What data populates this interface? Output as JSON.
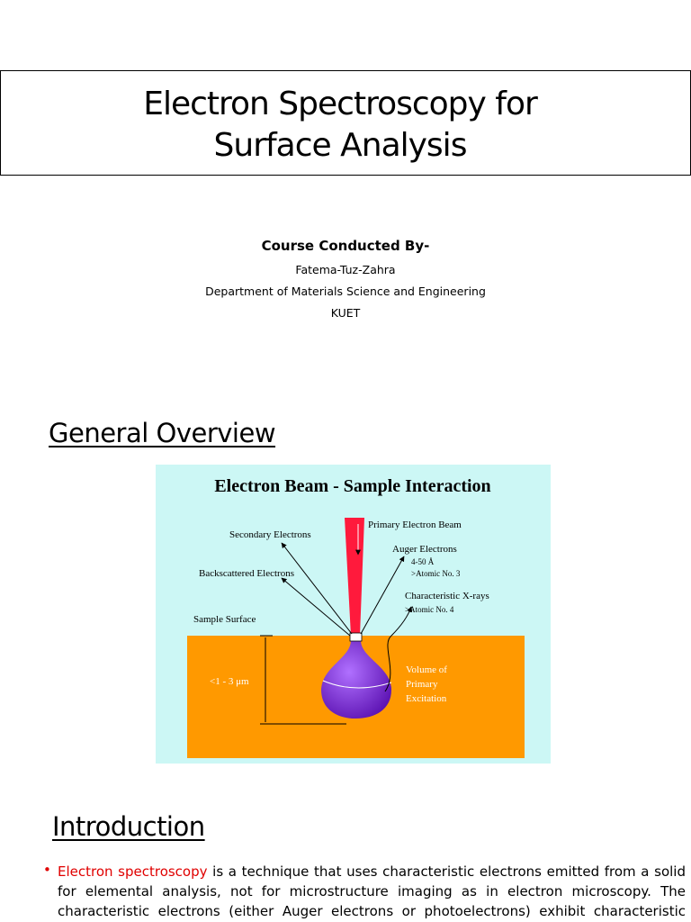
{
  "title": {
    "lines": [
      "Electron Spectroscopy for",
      "Surface Analysis"
    ]
  },
  "credits": {
    "heading": "Course Conducted By-",
    "name": "Fatema-Tuz-Zahra",
    "department": "Department of Materials Science and Engineering",
    "institution": "KUET"
  },
  "overview": {
    "heading": "General Overview",
    "figure": {
      "title": "Electron Beam - Sample Interaction",
      "labels": {
        "primary_beam": "Primary Electron Beam",
        "secondary": "Secondary Electrons",
        "auger": "Auger Electrons",
        "auger_depth": "4-50 Å",
        "auger_atomic": ">Atomic No. 3",
        "backscattered": "Backscattered Electrons",
        "xrays": "Characteristic X-rays",
        "xrays_atomic": ">Atomic No. 4",
        "surface": "Sample Surface",
        "depth": "<1 - 3 μm",
        "volume": [
          "Volume of",
          "Primary",
          "Excitation"
        ]
      }
    }
  },
  "introduction": {
    "heading": "Introduction",
    "highlight": "Electron spectroscopy",
    "lines": [
      "is a technique that uses characteristic electrons emitted from a solid",
      "for elemental analysis, not for microstructure imaging as in electron microscopy. The",
      "characteristic electrons (either Auger electrons or photoelectrons) exhibit characteristic"
    ]
  }
}
